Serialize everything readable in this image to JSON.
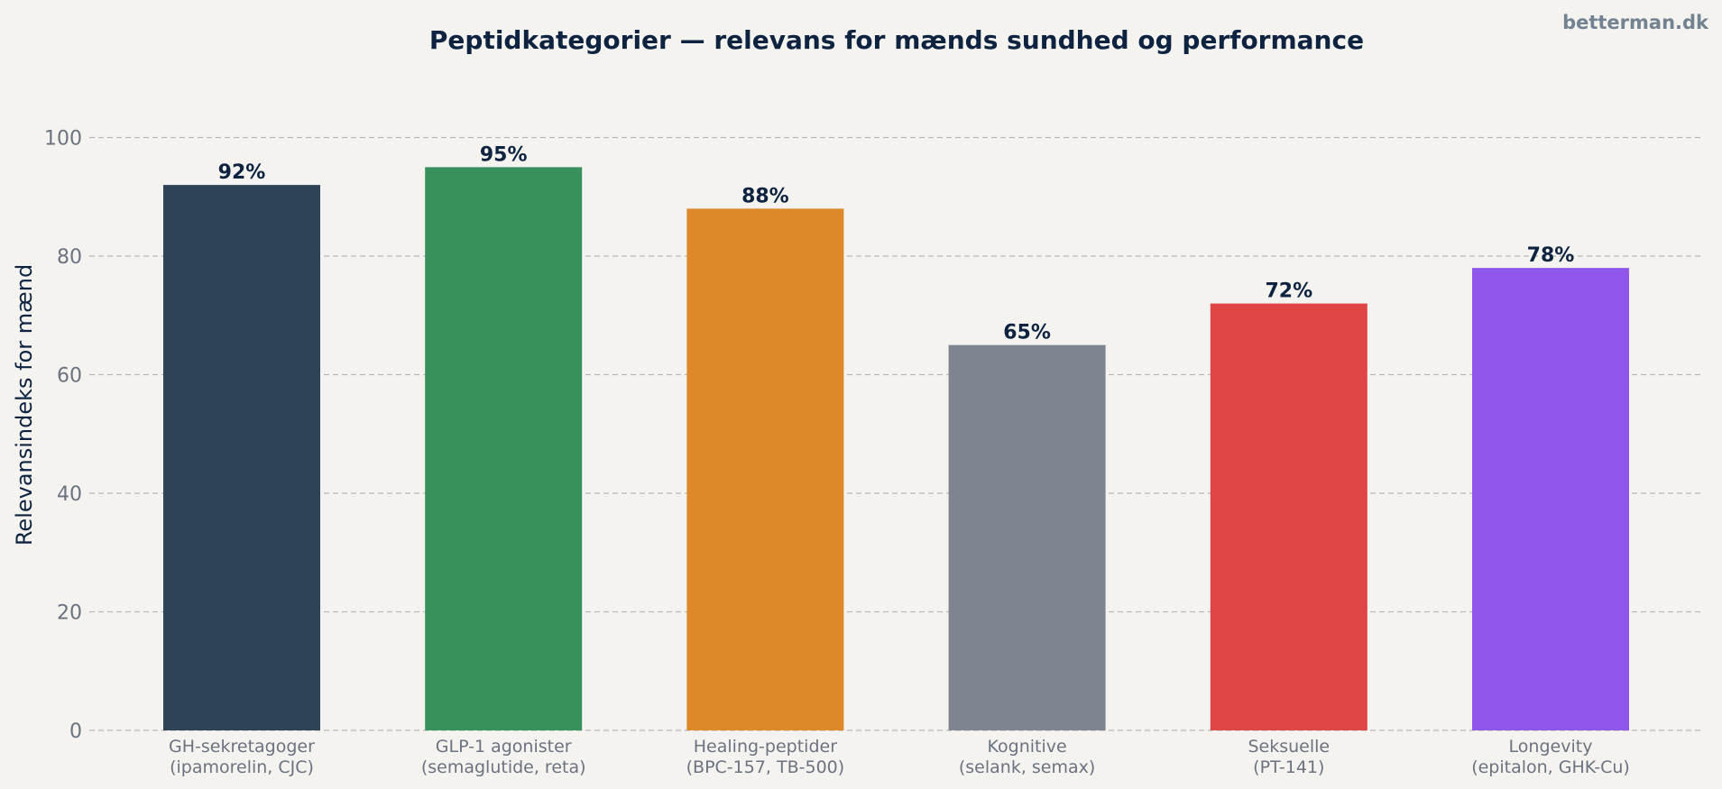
{
  "brand": "betterman.dk",
  "chart_data": {
    "type": "bar",
    "title": "Peptidkategorier — relevans for mænds sundhed og performance",
    "xlabel": "",
    "ylabel": "Relevansindeks for mænd",
    "ylim": [
      0,
      100
    ],
    "yticks": [
      0,
      20,
      40,
      60,
      80,
      100
    ],
    "grid": true,
    "categories": [
      [
        "GH-sekretagoger",
        "(ipamorelin, CJC)"
      ],
      [
        "GLP-1 agonister",
        "(semaglutide, reta)"
      ],
      [
        "Healing-peptider",
        "(BPC-157, TB-500)"
      ],
      [
        "Kognitive",
        "(selank, semax)"
      ],
      [
        "Seksuelle",
        "(PT-141)"
      ],
      [
        "Longevity",
        "(epitalon, GHK-Cu)"
      ]
    ],
    "values": [
      92,
      95,
      88,
      65,
      72,
      78
    ],
    "value_labels": [
      "92%",
      "95%",
      "88%",
      "65%",
      "72%",
      "78%"
    ],
    "colors": [
      "#2d4458",
      "#38905a",
      "#dd8829",
      "#7f8491",
      "#df4545",
      "#8e57ea"
    ]
  }
}
